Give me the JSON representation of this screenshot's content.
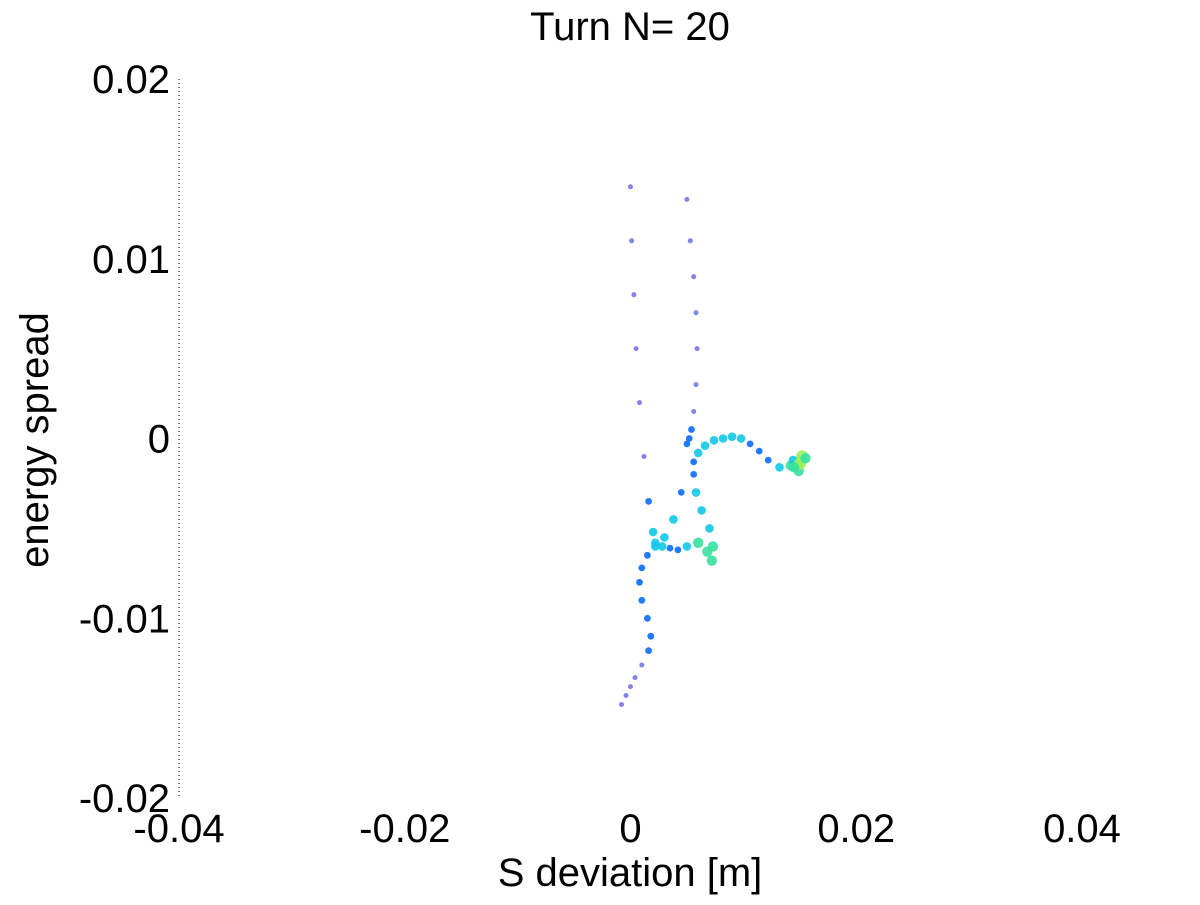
{
  "chart_data": {
    "type": "scatter",
    "title": "Turn N= 20",
    "xlabel": "S deviation [m]",
    "ylabel": "energy spread",
    "xlim": [
      -0.04,
      0.04
    ],
    "ylim": [
      -0.02,
      0.02
    ],
    "xticks": [
      -0.04,
      -0.02,
      0,
      0.02,
      0.04
    ],
    "xtick_labels": [
      "-0.04",
      "-0.02",
      "0",
      "0.02",
      "0.04"
    ],
    "yticks": [
      -0.02,
      -0.01,
      0,
      0.01,
      0.02
    ],
    "ytick_labels": [
      "-0.02",
      "-0.01",
      "0",
      "0.01",
      "0.02"
    ],
    "grid": false,
    "colormap": [
      "#1b1bd6",
      "#0a6cff",
      "#10c8e8",
      "#38e0a0",
      "#9ef05a"
    ],
    "series": [
      {
        "values_note_free": true,
        "x": [
          0.0,
          0.0001,
          0.0003,
          0.0005,
          0.0008,
          0.0012,
          0.0016,
          0.002,
          0.0022,
          0.0028,
          0.0035,
          0.0042,
          0.005,
          0.006,
          0.0068,
          0.0072,
          0.0073,
          0.007,
          0.0063,
          0.0058,
          0.0056,
          0.0056,
          0.006,
          0.0066,
          0.0074,
          0.0082,
          0.009,
          0.0098,
          0.0106,
          0.0114,
          0.0122,
          0.0132,
          0.0142,
          0.015,
          0.0152,
          0.0149,
          0.0144,
          0.015,
          0.0155,
          0.0145
        ],
        "y": [
          0.014,
          0.011,
          0.008,
          0.005,
          0.002,
          -0.001,
          -0.0035,
          -0.0052,
          -0.0058,
          -0.006,
          -0.0061,
          -0.0062,
          -0.006,
          -0.0058,
          -0.0063,
          -0.0068,
          -0.006,
          -0.005,
          -0.004,
          -0.003,
          -0.002,
          -0.0013,
          -0.0008,
          -0.0004,
          -0.0001,
          0.0,
          0.0001,
          0.0,
          -0.0003,
          -0.0007,
          -0.0012,
          -0.0016,
          -0.0015,
          -0.0013,
          -0.001,
          -0.0018,
          -0.0012,
          -0.0014,
          -0.0011,
          -0.0016
        ],
        "density": [
          1,
          1,
          1,
          1,
          1,
          1,
          2,
          3,
          3,
          3,
          2,
          2,
          3,
          4,
          4,
          4,
          4,
          3,
          3,
          3,
          2,
          2,
          3,
          3,
          3,
          3,
          3,
          3,
          2,
          2,
          2,
          3,
          4,
          5,
          5,
          4,
          3,
          5,
          4,
          4
        ]
      },
      {
        "x": [
          0.005,
          0.0053,
          0.0056,
          0.0058,
          0.0059,
          0.0058,
          0.0056,
          0.0054,
          0.0052,
          0.005,
          0.0045,
          0.0038,
          0.003,
          0.0022,
          0.0015,
          0.001,
          0.0008,
          0.001,
          0.0015,
          0.0018,
          0.0016,
          0.001,
          0.0004,
          0.0,
          -0.0004,
          -0.0008
        ],
        "y": [
          0.0133,
          0.011,
          0.009,
          0.007,
          0.005,
          0.003,
          0.0015,
          0.0005,
          0.0,
          -0.0003,
          -0.003,
          -0.0045,
          -0.0055,
          -0.006,
          -0.0065,
          -0.0072,
          -0.008,
          -0.009,
          -0.01,
          -0.011,
          -0.0118,
          -0.0126,
          -0.0133,
          -0.0138,
          -0.0143,
          -0.0148
        ],
        "density": [
          1,
          1,
          1,
          1,
          1,
          1,
          1,
          2,
          2,
          2,
          2,
          3,
          3,
          3,
          2,
          2,
          2,
          2,
          2,
          2,
          2,
          1,
          1,
          1,
          1,
          1
        ]
      }
    ]
  }
}
